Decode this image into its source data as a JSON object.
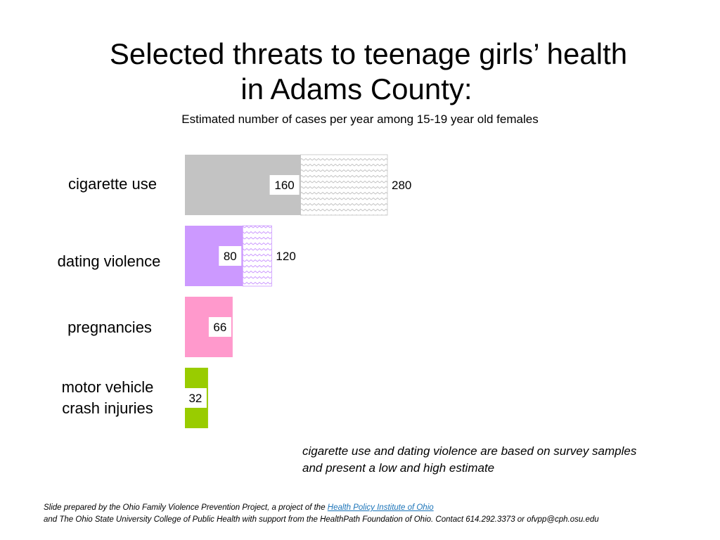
{
  "title_line1": "Selected threats to teenage girls’ health",
  "title_line2": "in Adams County:",
  "subtitle": "Estimated number of cases per year among 15-19 year old females",
  "note": {
    "line1": "cigarette use and dating violence are based on survey samples",
    "line2": "and present a low and high estimate"
  },
  "footer": {
    "prefix": "Slide prepared by the Ohio Family Violence Prevention Project, a project of the ",
    "link": "Health Policy Institute of Ohio",
    "line2": "and The Ohio State University College of Public Health with support from the HealthPath Foundation of Ohio.  Contact 614.292.3373 or ofvpp@cph.osu.edu"
  },
  "chart_data": {
    "type": "bar",
    "orientation": "horizontal",
    "title": "Selected threats to teenage girls’ health in Adams County:",
    "subtitle": "Estimated number of cases per year among 15-19 year old females",
    "categories": [
      "cigarette use",
      "dating violence",
      "pregnancies",
      "motor vehicle crash injuries"
    ],
    "category_lines": [
      [
        "cigarette use"
      ],
      [
        "dating violence"
      ],
      [
        "pregnancies"
      ],
      [
        "motor vehicle",
        "crash injuries"
      ]
    ],
    "series": [
      {
        "values": [
          160,
          80,
          66,
          32
        ]
      },
      {
        "values": [
          280,
          120,
          null,
          null
        ]
      }
    ],
    "low_labels": [
      "160",
      "80",
      "66",
      "32"
    ],
    "high_labels": [
      "280",
      "120",
      "",
      ""
    ],
    "colors": [
      "#c3c3c3",
      "#cc99ff",
      "#ff99cc",
      "#99cc00"
    ],
    "xlim": [
      0,
      280
    ],
    "grid": false,
    "legend": "none"
  }
}
